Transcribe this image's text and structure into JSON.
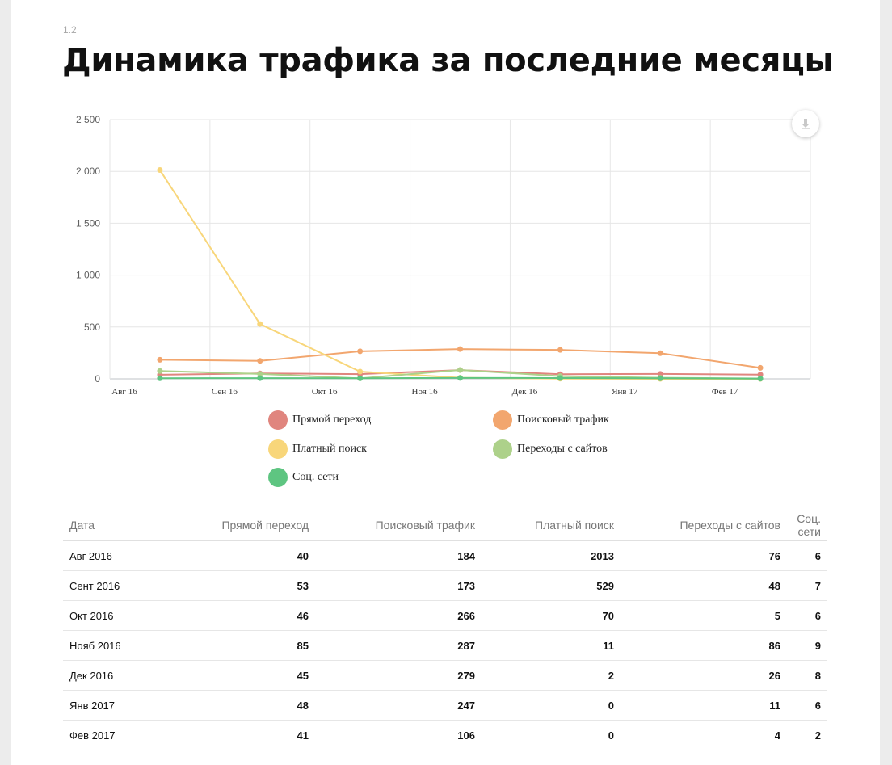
{
  "section": "1.2",
  "title": "Динамика трафика за последние месяцы",
  "chart_data": {
    "type": "line",
    "x_labels": [
      "Авг 16",
      "Сен 16",
      "Окт 16",
      "Ноя 16",
      "Дек 16",
      "Янв 17",
      "Фев 17"
    ],
    "y_ticks": [
      "0",
      "500",
      "1 000",
      "1 500",
      "2 000",
      "2 500"
    ],
    "ylim": [
      0,
      2500
    ],
    "grid": true,
    "legend_position": "bottom",
    "series": [
      {
        "name": "Прямой переход",
        "color": "#e0857e",
        "values": [
          40,
          53,
          46,
          85,
          45,
          48,
          41
        ]
      },
      {
        "name": "Поисковый трафик",
        "color": "#f2a66e",
        "values": [
          184,
          173,
          266,
          287,
          279,
          247,
          106
        ]
      },
      {
        "name": "Платный поиск",
        "color": "#f8d67a",
        "values": [
          2013,
          529,
          70,
          11,
          2,
          0,
          0
        ]
      },
      {
        "name": "Переходы с сайтов",
        "color": "#add18a",
        "values": [
          76,
          48,
          5,
          86,
          26,
          11,
          4
        ]
      },
      {
        "name": "Соц. сети",
        "color": "#5ec581",
        "values": [
          6,
          7,
          6,
          9,
          8,
          6,
          2
        ]
      }
    ]
  },
  "table": {
    "headers": [
      "Дата",
      "Прямой переход",
      "Поисковый трафик",
      "Платный поиск",
      "Переходы с сайтов",
      "Соц. сети"
    ],
    "rows": [
      [
        "Авг 2016",
        "40",
        "184",
        "2013",
        "76",
        "6"
      ],
      [
        "Сент 2016",
        "53",
        "173",
        "529",
        "48",
        "7"
      ],
      [
        "Окт 2016",
        "46",
        "266",
        "70",
        "5",
        "6"
      ],
      [
        "Нояб 2016",
        "85",
        "287",
        "11",
        "86",
        "9"
      ],
      [
        "Дек 2016",
        "45",
        "279",
        "2",
        "26",
        "8"
      ],
      [
        "Янв 2017",
        "48",
        "247",
        "0",
        "11",
        "6"
      ],
      [
        "Фев 2017",
        "41",
        "106",
        "0",
        "4",
        "2"
      ]
    ]
  },
  "icons": {
    "export": "download-icon"
  }
}
